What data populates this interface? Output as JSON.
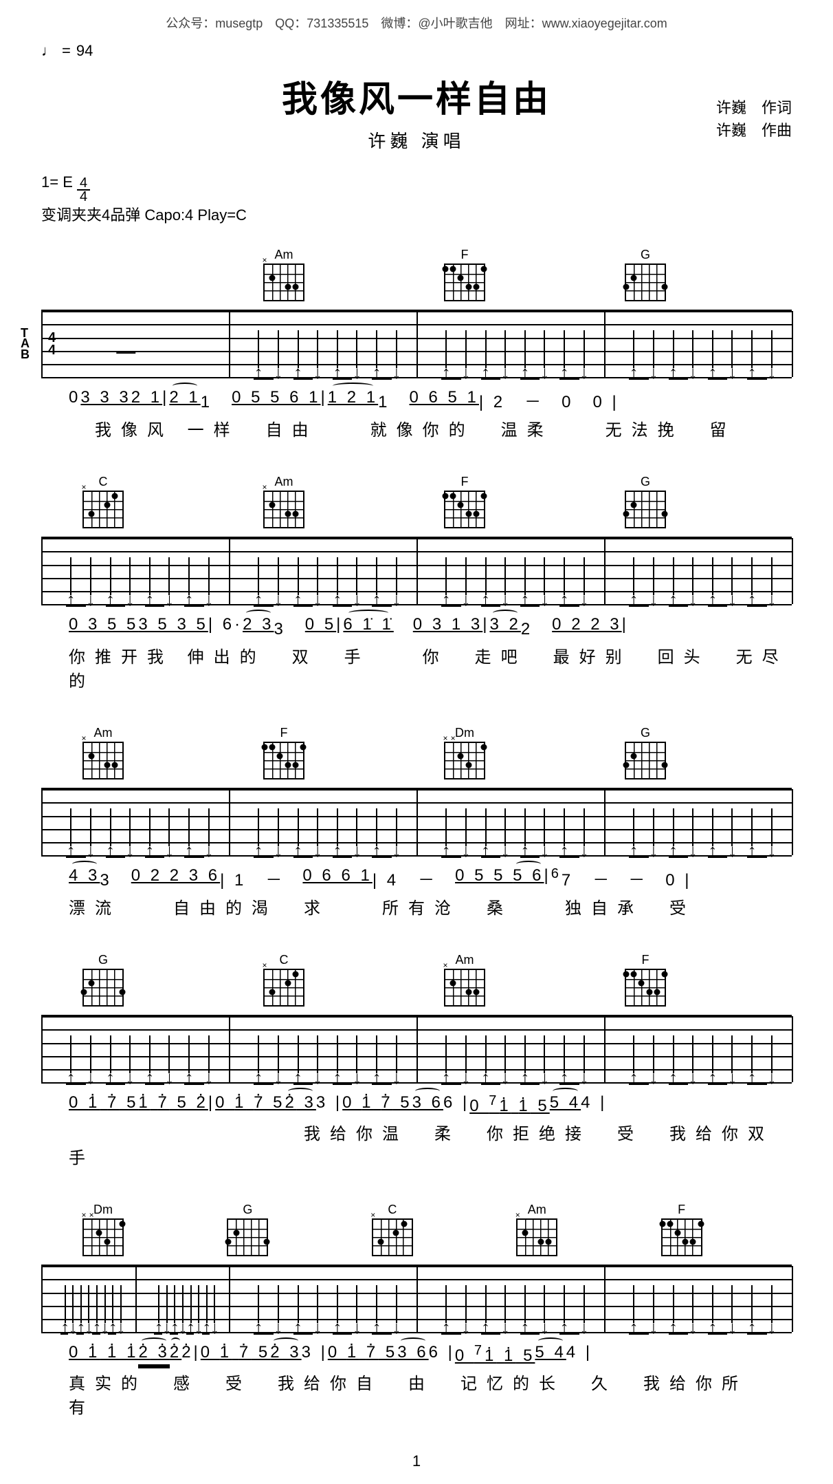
{
  "header_meta": "公众号：musegtp　QQ：731335515　微博：@小叶歌吉他　网址：www.xiaoyegejitar.com",
  "tempo": {
    "note": "♩",
    "equals": "=",
    "bpm": "94"
  },
  "title": "我像风一样自由",
  "subtitle": "许巍 演唱",
  "key_line": "1= E",
  "time_sig": {
    "num": "4",
    "den": "4"
  },
  "capo_line": "变调夹夹4品弹 Capo:4 Play=C",
  "credits": {
    "lyricist": "许巍　作词",
    "composer": "许巍　作曲"
  },
  "tab_label": {
    "t": "T",
    "a": "A",
    "b": "B"
  },
  "chords_def": {
    "Am": {
      "name": "Am",
      "dots": [
        [
          20,
          37
        ],
        [
          60,
          62
        ],
        [
          80,
          62
        ]
      ],
      "x": [
        0
      ]
    },
    "F": {
      "name": "F",
      "dots": [
        [
          0,
          12
        ],
        [
          20,
          12
        ],
        [
          40,
          37
        ],
        [
          60,
          62
        ],
        [
          80,
          62
        ],
        [
          100,
          12
        ]
      ],
      "x": []
    },
    "G": {
      "name": "G",
      "dots": [
        [
          0,
          62
        ],
        [
          20,
          37
        ],
        [
          100,
          62
        ]
      ],
      "x": []
    },
    "C": {
      "name": "C",
      "dots": [
        [
          20,
          62
        ],
        [
          60,
          37
        ],
        [
          80,
          12
        ]
      ],
      "x": [
        0
      ]
    },
    "Dm": {
      "name": "Dm",
      "dots": [
        [
          40,
          37
        ],
        [
          60,
          62
        ],
        [
          100,
          12
        ]
      ],
      "x": [
        0,
        20
      ]
    }
  },
  "systems": [
    {
      "show_timesig": true,
      "chords": [
        "",
        "Am",
        "F",
        "G"
      ],
      "bars": [
        0,
        25,
        50,
        75,
        100
      ],
      "numbers": "0 <u>3 3 3</u> <u>2 1</u> | <u class='slur'>2 1</u> 1　<u>0 5 5 6 1</u> | <u class='slur'>1 2 1</u> 1　<u>0 6 5 1</u> | 2　<span class='rest-dash'>－</span>　0　0 |",
      "lyrics": "　我像风 一样　自由　　就像你的　温柔　　无法挽　留"
    },
    {
      "chords": [
        "C",
        "Am",
        "F",
        "G"
      ],
      "bars": [
        0,
        25,
        50,
        75,
        100
      ],
      "numbers": "<u>0 3 5 5</u> <u>3 5 3 5</u> | 6· <u class='slur'>2 3</u> 3　<u>0 5</u> | <u class='slur'>6 1̇ 1̇</u>　<u>0 3 1 3</u> | <u class='slur'>3 2</u> 2　<u>0 2 2 3</u> |",
      "lyrics": "你推开我 伸出的　双　手　　你　走吧　最好别　回头　无尽的"
    },
    {
      "chords": [
        "Am",
        "F",
        "Dm",
        "G"
      ],
      "bars": [
        0,
        25,
        50,
        75,
        100
      ],
      "numbers": "<u class='slur'>4 3</u> 3　<u>0 2 2 3 6</u> | 1　<span class='rest-dash'>－</span>　<u>0 6 6 1</u> | 4　<span class='rest-dash'>－</span>　<u>0 5 5 <span class='slur'>5 6</span></u> | <sup>6</sup>7　<span class='rest-dash'>－　－</span>　0 |",
      "lyrics": "漂流　　自由的渴　求　　所有沧　桑　　独自承　受"
    },
    {
      "chords": [
        "G",
        "C",
        "Am",
        "F"
      ],
      "bars": [
        0,
        25,
        50,
        75,
        100
      ],
      "numbers": "<u>0 <span class='dotsup'>1</span> <span class='dotsup'>7</span> 5</u> <u><span class='dotsup'>1</span> <span class='dotsup'>7</span> 5 <span class='dotsup'>2</span></u> | <u>0 <span class='dotsup'>1</span> <span class='dotsup'>7</span> 5</u> <u class='slur'><span class='dotsup'>2</span> 3</u> 3 | <u>0 <span class='dotsup'>1</span> <span class='dotsup'>7</span> 5</u> <u class='slur'>3 6</u> 6 | <u>0 <sup>7</sup><span class='dotsup'>1</span> <span class='dotsup'>1</span> 5</u> <u class='slur'>5 4</u> 4 |",
      "lyrics": "　　　　　　　　　我给你温　柔　你拒绝接　受　我给你双　手"
    },
    {
      "chords": [
        "Dm",
        "G",
        "C",
        "Am",
        "F"
      ],
      "bars": [
        0,
        12.5,
        25,
        50,
        75,
        100
      ],
      "numbers": "<u>0 <span class='dotsup'>1</span> <span class='dotsup'>1</span> <span class='dotsup'>1</span></u> <u class='slur dunder'><span class='dotsup'>2</span> <span class='dotsup'>3</span></u> <u class='slur'><span class='dotsup'>2</span></u> <span class='dotsup'>2</span> | <u>0 <span class='dotsup'>1</span> <span class='dotsup'>7</span> 5</u> <u class='slur'><span class='dotsup'>2</span> 3</u> 3 | <u>0 <span class='dotsup'>1</span> <span class='dotsup'>7</span> 5</u> <u class='slur'>3 6</u> 6 | <u>0 <sup>7</sup><span class='dotsup'>1</span> <span class='dotsup'>1</span> 5</u> <u class='slur'>5 4</u> 4 |",
      "lyrics": "真实的　感　受　我给你自　由　记忆的长　久　我给你所　有"
    }
  ],
  "page_number": "1",
  "colors": {
    "fg": "#000000",
    "bg": "#ffffff"
  }
}
